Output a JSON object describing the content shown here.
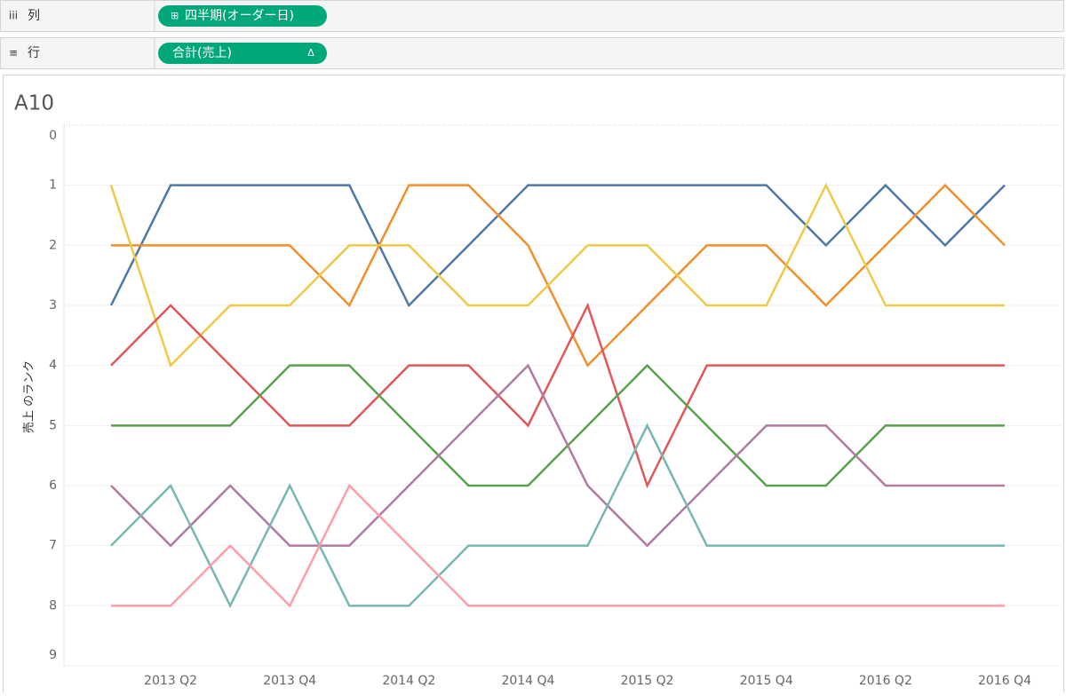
{
  "shelves": {
    "columns": {
      "icon": "iii",
      "label": "列",
      "pill": {
        "icon": "⊞",
        "text": "四半期(オーダー日)"
      }
    },
    "rows": {
      "icon": "≡",
      "label": "行",
      "pill": {
        "text": "合計(売上)",
        "icon": "Δ"
      }
    }
  },
  "chart_data": {
    "type": "line",
    "title": "A10",
    "y_label": "売上 のランク",
    "categories": [
      null,
      "2013 Q2",
      null,
      "2013 Q4",
      null,
      "2014 Q2",
      null,
      "2014 Q4",
      null,
      "2015 Q2",
      null,
      "2015 Q4",
      null,
      "2016 Q2",
      null,
      "2016 Q4"
    ],
    "ylim": [
      0,
      9
    ],
    "y_reversed": true,
    "yticks": [
      0,
      1,
      2,
      3,
      4,
      5,
      6,
      7,
      8,
      9
    ],
    "grid": true,
    "series": [
      {
        "color": "#4e79a7",
        "values": [
          3,
          1,
          1,
          1,
          1,
          3,
          2,
          1,
          1,
          1,
          1,
          1,
          2,
          1,
          2,
          1
        ]
      },
      {
        "color": "#f28e2b",
        "values": [
          2,
          2,
          2,
          2,
          3,
          1,
          1,
          2,
          4,
          3,
          2,
          2,
          3,
          2,
          1,
          2
        ]
      },
      {
        "color": "#edc948",
        "values": [
          1,
          4,
          3,
          3,
          2,
          2,
          3,
          3,
          2,
          2,
          3,
          3,
          1,
          3,
          3,
          3
        ]
      },
      {
        "color": "#e15759",
        "values": [
          4,
          3,
          4,
          5,
          5,
          4,
          4,
          5,
          3,
          6,
          4,
          4,
          4,
          4,
          4,
          4
        ]
      },
      {
        "color": "#59a14f",
        "values": [
          5,
          5,
          5,
          4,
          4,
          5,
          6,
          6,
          5,
          4,
          5,
          6,
          6,
          5,
          5,
          5
        ]
      },
      {
        "color": "#b07aa1",
        "values": [
          6,
          7,
          6,
          7,
          7,
          6,
          5,
          4,
          6,
          7,
          6,
          5,
          5,
          6,
          6,
          6
        ]
      },
      {
        "color": "#76b7b2",
        "values": [
          7,
          6,
          8,
          6,
          8,
          8,
          7,
          7,
          7,
          5,
          7,
          7,
          7,
          7,
          7,
          7
        ]
      },
      {
        "color": "#ff9da7",
        "values": [
          8,
          8,
          7,
          8,
          6,
          7,
          8,
          8,
          8,
          8,
          8,
          8,
          8,
          8,
          8,
          8
        ]
      }
    ]
  }
}
